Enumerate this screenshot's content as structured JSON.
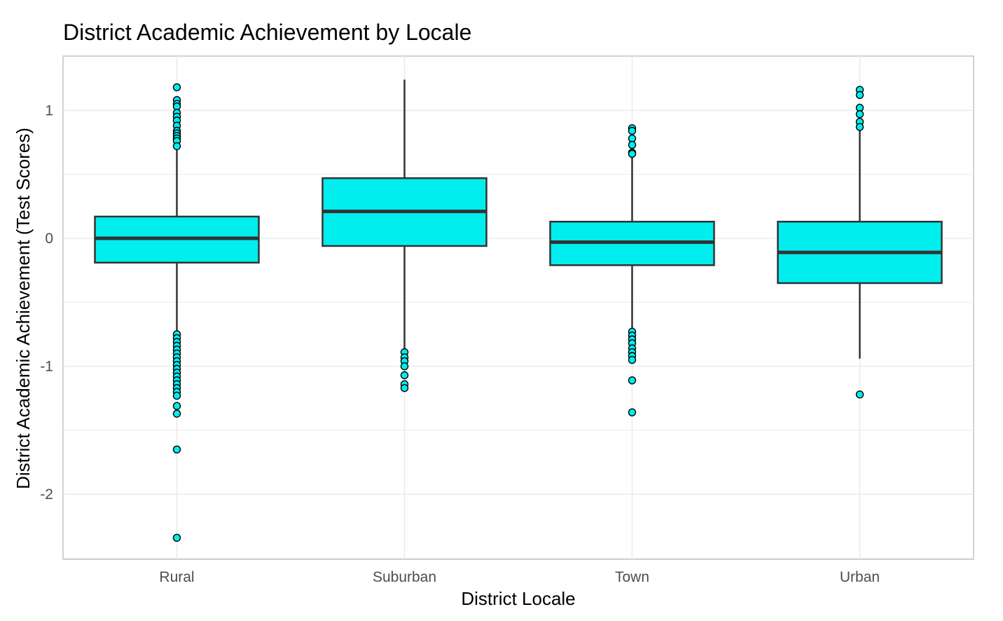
{
  "chart_data": {
    "type": "box",
    "title": "District Academic Achievement by Locale",
    "xlabel": "District Locale",
    "ylabel": "District Academic Achievement (Test Scores)",
    "categories": [
      "Rural",
      "Suburban",
      "Town",
      "Urban"
    ],
    "ylim": [
      -2.5,
      1.4
    ],
    "yticks": [
      -2,
      -1,
      0,
      1
    ],
    "ytick_labels": [
      "-2",
      "-1",
      "0",
      "1"
    ],
    "grid": true,
    "box_fill": "#00EEEE",
    "box_stroke": "#333333",
    "boxes": [
      {
        "name": "Rural",
        "q1": -0.19,
        "median": 0.0,
        "q3": 0.17,
        "whisker_low": -0.73,
        "whisker_high": 0.71,
        "outliers": [
          1.18,
          1.08,
          1.05,
          1.03,
          0.98,
          0.95,
          0.92,
          0.88,
          0.84,
          0.82,
          0.8,
          0.78,
          0.76,
          0.72,
          -0.75,
          -0.78,
          -0.81,
          -0.84,
          -0.87,
          -0.9,
          -0.93,
          -0.96,
          -0.99,
          -1.02,
          -1.05,
          -1.08,
          -1.11,
          -1.14,
          -1.17,
          -1.2,
          -1.23,
          -1.31,
          -1.37,
          -1.65,
          -2.34
        ]
      },
      {
        "name": "Suburban",
        "q1": -0.06,
        "median": 0.21,
        "q3": 0.47,
        "whisker_low": -0.86,
        "whisker_high": 1.24,
        "outliers": [
          -0.89,
          -0.93,
          -0.96,
          -1.0,
          -1.07,
          -1.14,
          -1.17
        ]
      },
      {
        "name": "Town",
        "q1": -0.21,
        "median": -0.03,
        "q3": 0.13,
        "whisker_low": -0.72,
        "whisker_high": 0.65,
        "outliers": [
          0.86,
          0.84,
          0.78,
          0.73,
          0.67,
          0.66,
          -0.73,
          -0.76,
          -0.79,
          -0.82,
          -0.86,
          -0.89,
          -0.92,
          -0.95,
          -1.11,
          -1.36
        ]
      },
      {
        "name": "Urban",
        "q1": -0.35,
        "median": -0.11,
        "q3": 0.13,
        "whisker_low": -0.94,
        "whisker_high": 0.86,
        "outliers": [
          1.16,
          1.12,
          1.02,
          0.97,
          0.91,
          0.87,
          -1.22
        ]
      }
    ]
  }
}
